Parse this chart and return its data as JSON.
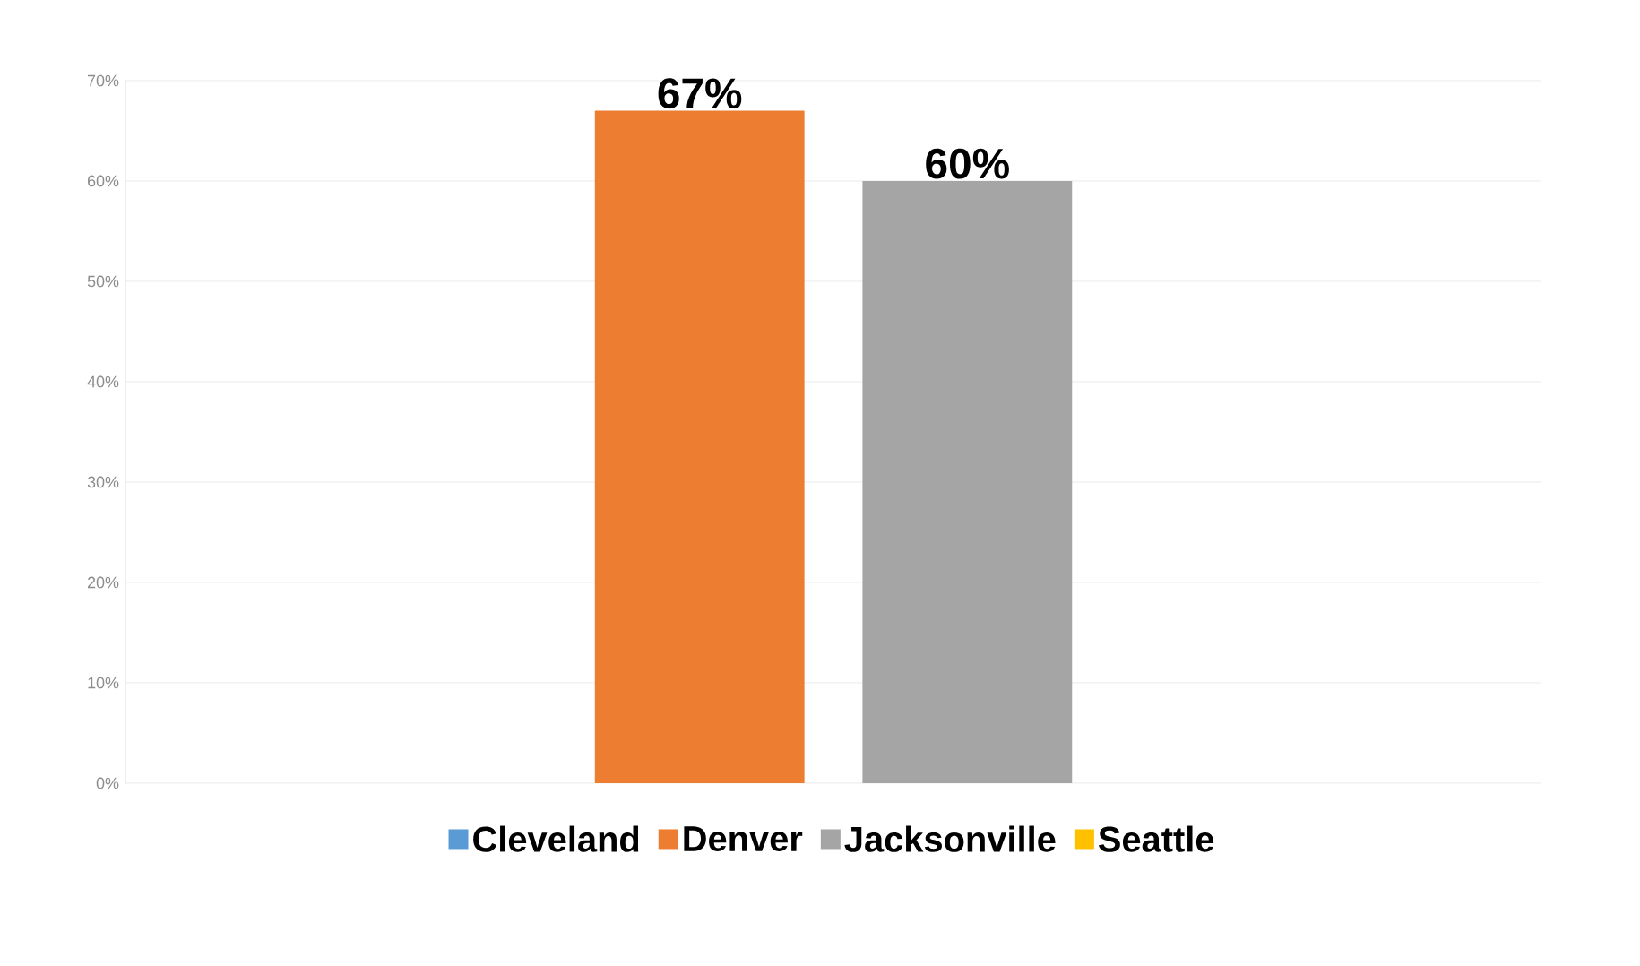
{
  "chart_data": {
    "type": "bar",
    "categories": [
      null
    ],
    "series": [
      {
        "name": "Cleveland",
        "color": "#5b9bd5",
        "values": [
          null
        ],
        "value_labels": [
          null
        ]
      },
      {
        "name": "Denver",
        "color": "#ed7d31",
        "values": [
          67
        ],
        "value_labels": [
          "67%"
        ]
      },
      {
        "name": "Jacksonville",
        "color": "#a5a5a5",
        "values": [
          60
        ],
        "value_labels": [
          "60%"
        ]
      },
      {
        "name": "Seattle",
        "color": "#ffc000",
        "values": [
          null
        ],
        "value_labels": [
          null
        ]
      }
    ],
    "ylim": [
      0,
      70
    ],
    "yticks": [
      {
        "value": 0,
        "label": "0%"
      },
      {
        "value": 10,
        "label": "10%"
      },
      {
        "value": 20,
        "label": "20%"
      },
      {
        "value": 30,
        "label": "30%"
      },
      {
        "value": 40,
        "label": "40%"
      },
      {
        "value": 50,
        "label": "50%"
      },
      {
        "value": 60,
        "label": "60%"
      },
      {
        "value": 70,
        "label": "70%"
      }
    ],
    "grid": "y",
    "legend": "bottom"
  }
}
